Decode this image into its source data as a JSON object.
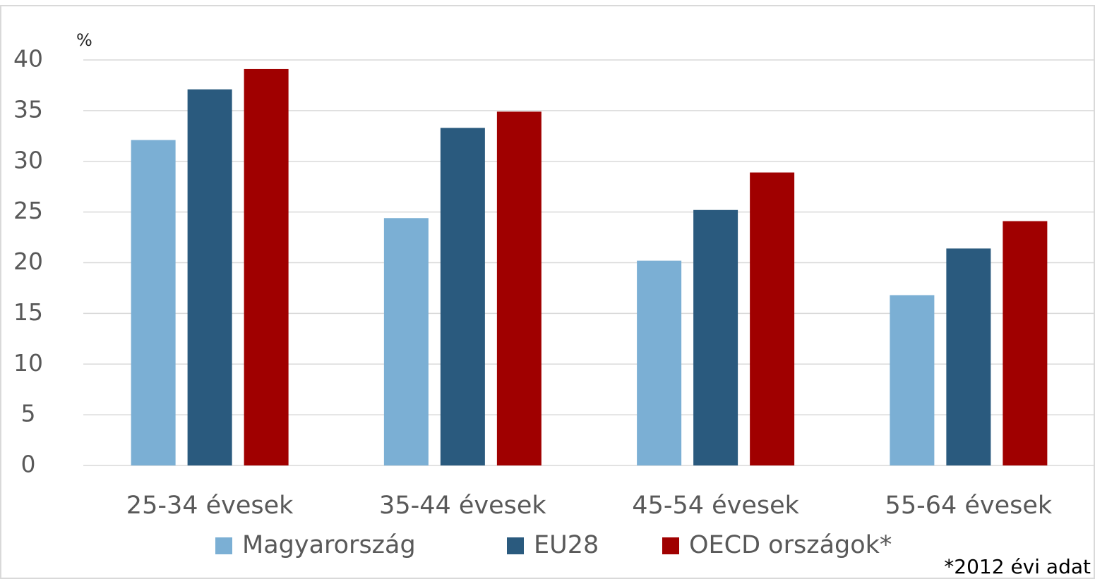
{
  "chart_data": {
    "type": "bar",
    "unit_label": "%",
    "categories": [
      "25-34 évesek",
      "35-44 évesek",
      "45-54 évesek",
      "55-64 évesek"
    ],
    "series": [
      {
        "name": "Magyarország",
        "color": "#7bafd4",
        "values": [
          32.1,
          24.4,
          20.2,
          16.8
        ]
      },
      {
        "name": "EU28",
        "color": "#2a5a7e",
        "values": [
          37.1,
          33.3,
          25.2,
          21.4
        ]
      },
      {
        "name": "OECD országok*",
        "color": "#a00000",
        "values": [
          39.1,
          34.9,
          28.9,
          24.1
        ]
      }
    ],
    "ylim": [
      0,
      40
    ],
    "yticks": [
      0,
      5,
      10,
      15,
      20,
      25,
      30,
      35,
      40
    ],
    "grid": true,
    "footnote": "*2012 évi adat"
  }
}
